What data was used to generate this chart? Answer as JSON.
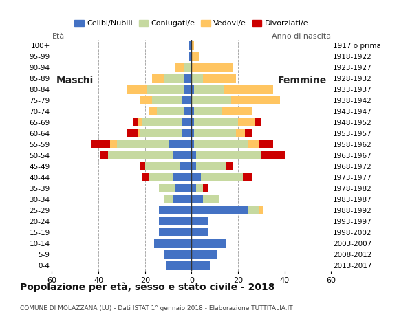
{
  "age_groups": [
    "0-4",
    "5-9",
    "10-14",
    "15-19",
    "20-24",
    "25-29",
    "30-34",
    "35-39",
    "40-44",
    "45-49",
    "50-54",
    "55-59",
    "60-64",
    "65-69",
    "70-74",
    "75-79",
    "80-84",
    "85-89",
    "90-94",
    "95-99",
    "100+"
  ],
  "birth_years": [
    "2013-2017",
    "2008-2012",
    "2003-2007",
    "1998-2002",
    "1993-1997",
    "1988-1992",
    "1983-1987",
    "1978-1982",
    "1973-1977",
    "1968-1972",
    "1963-1967",
    "1958-1962",
    "1953-1957",
    "1948-1952",
    "1943-1947",
    "1938-1942",
    "1933-1937",
    "1928-1932",
    "1923-1927",
    "1918-1922",
    "1917 o prima"
  ],
  "colors": {
    "celibe": "#4472c4",
    "coniugato": "#c6d9a0",
    "vedovo": "#ffc561",
    "divorziato": "#cc0000"
  },
  "males": {
    "celibe": [
      11,
      12,
      16,
      14,
      14,
      14,
      8,
      7,
      8,
      5,
      8,
      10,
      4,
      4,
      3,
      4,
      3,
      3,
      0,
      1,
      1
    ],
    "coniugato": [
      0,
      0,
      0,
      0,
      0,
      0,
      4,
      7,
      10,
      15,
      28,
      22,
      18,
      17,
      12,
      13,
      16,
      9,
      3,
      0,
      0
    ],
    "vedovo": [
      0,
      0,
      0,
      0,
      0,
      0,
      0,
      0,
      0,
      0,
      0,
      3,
      1,
      2,
      3,
      5,
      9,
      5,
      4,
      0,
      0
    ],
    "divorziato": [
      0,
      0,
      0,
      0,
      0,
      0,
      0,
      0,
      3,
      2,
      3,
      8,
      5,
      2,
      0,
      0,
      0,
      0,
      0,
      0,
      0
    ]
  },
  "females": {
    "celibe": [
      8,
      11,
      15,
      7,
      7,
      24,
      5,
      2,
      4,
      2,
      2,
      1,
      1,
      1,
      1,
      0,
      1,
      0,
      0,
      0,
      0
    ],
    "coniugato": [
      0,
      0,
      0,
      0,
      0,
      5,
      7,
      3,
      18,
      13,
      28,
      23,
      18,
      19,
      12,
      17,
      13,
      5,
      0,
      0,
      0
    ],
    "vedovo": [
      0,
      0,
      0,
      0,
      0,
      2,
      0,
      0,
      0,
      0,
      0,
      5,
      4,
      7,
      13,
      21,
      21,
      14,
      18,
      3,
      1
    ],
    "divorziato": [
      0,
      0,
      0,
      0,
      0,
      0,
      0,
      2,
      4,
      3,
      10,
      6,
      3,
      3,
      0,
      0,
      0,
      0,
      0,
      0,
      0
    ]
  },
  "title": "Popolazione per età, sesso e stato civile - 2018",
  "subtitle": "COMUNE DI MOLAZZANA (LU) - Dati ISTAT 1° gennaio 2018 - Elaborazione TUTTITALIA.IT",
  "xlabel_left": "Maschi",
  "xlabel_right": "Femmine",
  "eta_label": "Età",
  "anno_label": "Anno di nascita",
  "legend_labels": [
    "Celibi/Nubili",
    "Coniugati/e",
    "Vedovi/e",
    "Divorziati/e"
  ],
  "xlim": 60,
  "background_color": "#ffffff"
}
